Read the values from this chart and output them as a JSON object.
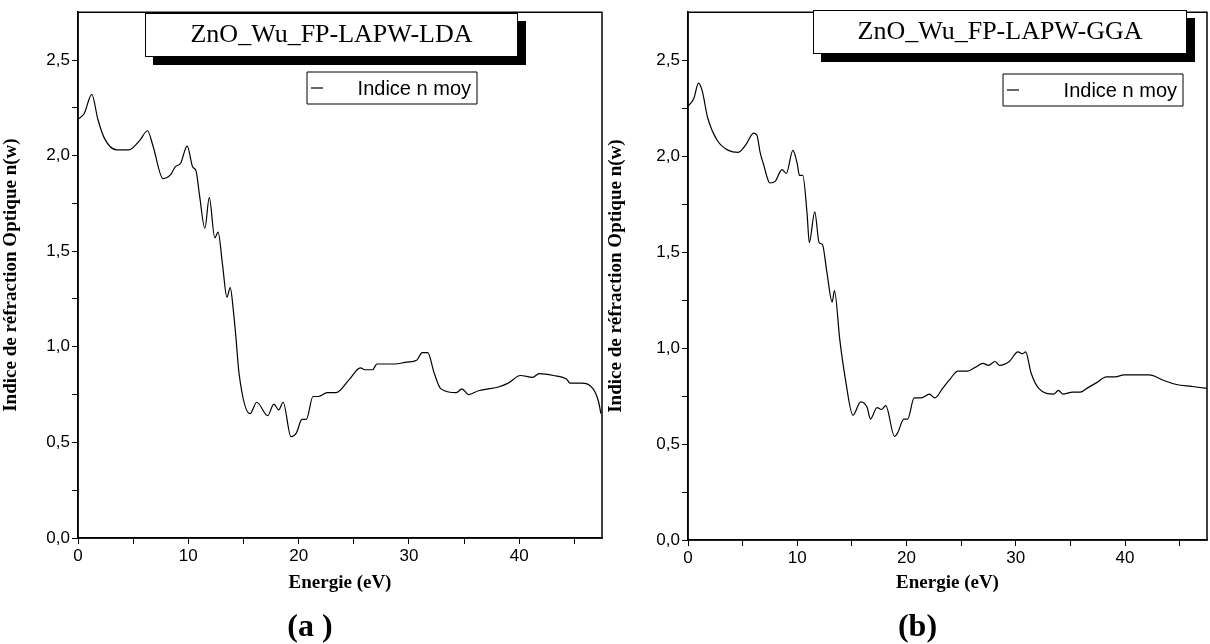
{
  "chart_data": [
    {
      "type": "line",
      "title": "ZnO_Wu_FP-LAPW-LDA",
      "xlabel": "Energie (eV)",
      "ylabel": "Indice de réfraction Optique n(w)",
      "annotations": [
        "(a )"
      ],
      "legend": "top right",
      "grid": false,
      "marker": "none",
      "line_style": "solid",
      "xlim": [
        0,
        47.5
      ],
      "ylim": [
        0,
        2.75
      ],
      "xticks": [
        0,
        {
          "value": 5,
          "label": null
        },
        10,
        {
          "value": 15,
          "label": null
        },
        20,
        {
          "value": 25,
          "label": null
        },
        30,
        {
          "value": 35,
          "label": null
        },
        40,
        {
          "value": 45,
          "label": null
        }
      ],
      "yticks": [
        {
          "value": 0,
          "label": "0,0"
        },
        {
          "value": 0.25,
          "label": null
        },
        {
          "value": 0.5,
          "label": "0,5"
        },
        {
          "value": 0.75,
          "label": null
        },
        {
          "value": 1,
          "label": "1,0"
        },
        {
          "value": 1.25,
          "label": null
        },
        {
          "value": 1.5,
          "label": "1,5"
        },
        {
          "value": 1.75,
          "label": null
        },
        {
          "value": 2,
          "label": "2,0"
        },
        {
          "value": 2.25,
          "label": null
        },
        {
          "value": 2.5,
          "label": "2,5"
        }
      ],
      "series": [
        {
          "name": "Indice n moy",
          "color": "#000000",
          "x": [
            0,
            0.56,
            1.25,
            1.8,
            2.4,
            3.5,
            4.6,
            5.6,
            6.3,
            6.8,
            7.7,
            8.4,
            8.8,
            9.3,
            9.9,
            10.4,
            10.7,
            11.0,
            11.5,
            11.9,
            12.4,
            12.7,
            13.1,
            13.5,
            13.8,
            14.1,
            14.3,
            14.6,
            15.6,
            16.2,
            17.2,
            17.75,
            18.2,
            18.6,
            19.3,
            19.8,
            20.3,
            20.7,
            21.3,
            21.8,
            22.6,
            23.4,
            24.6,
            25.6,
            26.0,
            26.7,
            27.1,
            28.7,
            29.8,
            30.7,
            31.2,
            31.7,
            32.3,
            32.9,
            34.3,
            34.8,
            35.4,
            36.3,
            38.1,
            39.0,
            40.1,
            41.2,
            41.8,
            43.1,
            44.3,
            44.6,
            45.6,
            46.7,
            47.2,
            47.4
          ],
          "values": [
            2.19,
            2.22,
            2.32,
            2.19,
            2.09,
            2.03,
            2.03,
            2.08,
            2.13,
            2.05,
            1.88,
            1.9,
            1.94,
            1.96,
            2.05,
            1.94,
            1.92,
            1.8,
            1.62,
            1.78,
            1.57,
            1.6,
            1.43,
            1.26,
            1.31,
            1.18,
            1.06,
            0.86,
            0.65,
            0.71,
            0.64,
            0.7,
            0.67,
            0.71,
            0.53,
            0.55,
            0.62,
            0.62,
            0.74,
            0.74,
            0.76,
            0.76,
            0.83,
            0.89,
            0.88,
            0.88,
            0.91,
            0.91,
            0.92,
            0.93,
            0.97,
            0.97,
            0.86,
            0.78,
            0.76,
            0.78,
            0.75,
            0.77,
            0.79,
            0.81,
            0.85,
            0.84,
            0.86,
            0.85,
            0.83,
            0.81,
            0.81,
            0.78,
            0.71,
            0.65
          ]
        }
      ]
    },
    {
      "type": "line",
      "title": "ZnO_Wu_FP-LAPW-GGA",
      "xlabel": "Energie (eV)",
      "ylabel": "Indice de réfraction Optique n(w)",
      "annotations": [
        "(b)"
      ],
      "legend": "top right",
      "grid": false,
      "marker": "none",
      "line_style": "solid",
      "xlim": [
        0,
        47.5
      ],
      "ylim": [
        0,
        2.75
      ],
      "xticks": [
        0,
        {
          "value": 5,
          "label": null
        },
        10,
        {
          "value": 15,
          "label": null
        },
        20,
        {
          "value": 25,
          "label": null
        },
        30,
        {
          "value": 35,
          "label": null
        },
        40,
        {
          "value": 45,
          "label": null
        }
      ],
      "yticks": [
        {
          "value": 0,
          "label": "0,0"
        },
        {
          "value": 0.25,
          "label": null
        },
        {
          "value": 0.5,
          "label": "0,5"
        },
        {
          "value": 0.75,
          "label": null
        },
        {
          "value": 1,
          "label": "1,0"
        },
        {
          "value": 1.25,
          "label": null
        },
        {
          "value": 1.5,
          "label": "1,5"
        },
        {
          "value": 1.75,
          "label": null
        },
        {
          "value": 2,
          "label": "2,0"
        },
        {
          "value": 2.25,
          "label": null
        },
        {
          "value": 2.5,
          "label": "2,5"
        }
      ],
      "series": [
        {
          "name": "Indice n moy",
          "color": "#000000",
          "x": [
            0,
            0.53,
            0.96,
            1.3,
            1.8,
            2.7,
            3.7,
            4.6,
            5.3,
            6.0,
            6.3,
            6.6,
            6.9,
            7.5,
            8.0,
            8.6,
            9.0,
            9.6,
            10.0,
            10.2,
            10.5,
            10.9,
            11.1,
            11.6,
            12.0,
            12.3,
            12.7,
            13.2,
            13.4,
            13.9,
            14.4,
            15.1,
            15.8,
            16.4,
            16.7,
            17.3,
            17.7,
            18.1,
            18.9,
            19.2,
            19.75,
            20.1,
            20.7,
            21.35,
            22.1,
            22.6,
            23.3,
            24.0,
            24.7,
            25.6,
            26.3,
            27.0,
            27.5,
            28.1,
            28.5,
            29.4,
            30.2,
            30.6,
            30.9,
            31.4,
            32.1,
            33.5,
            33.9,
            34.3,
            35.2,
            35.9,
            36.5,
            37.4,
            38.3,
            39.1,
            39.9,
            40.7,
            42.2,
            43.6,
            44.7,
            46.1,
            47.5
          ],
          "values": [
            2.26,
            2.3,
            2.38,
            2.34,
            2.2,
            2.08,
            2.03,
            2.02,
            2.06,
            2.12,
            2.11,
            2.02,
            1.96,
            1.86,
            1.87,
            1.93,
            1.91,
            2.03,
            1.96,
            1.9,
            1.9,
            1.7,
            1.55,
            1.71,
            1.55,
            1.54,
            1.4,
            1.24,
            1.3,
            1.04,
            0.84,
            0.65,
            0.72,
            0.69,
            0.63,
            0.69,
            0.68,
            0.7,
            0.54,
            0.56,
            0.63,
            0.63,
            0.74,
            0.74,
            0.76,
            0.74,
            0.79,
            0.84,
            0.88,
            0.88,
            0.9,
            0.92,
            0.91,
            0.93,
            0.91,
            0.93,
            0.98,
            0.97,
            0.98,
            0.87,
            0.79,
            0.76,
            0.78,
            0.76,
            0.77,
            0.77,
            0.79,
            0.82,
            0.85,
            0.85,
            0.86,
            0.86,
            0.86,
            0.83,
            0.81,
            0.8,
            0.79
          ]
        }
      ]
    }
  ]
}
